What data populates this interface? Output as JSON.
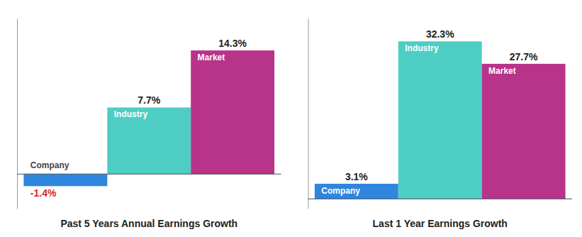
{
  "chart_data": [
    {
      "type": "bar",
      "title": "Past 5 Years Annual Earnings Growth",
      "categories": [
        "Company",
        "Industry",
        "Market"
      ],
      "values": [
        -1.4,
        7.7,
        14.3
      ],
      "value_labels": [
        "-1.4%",
        "7.7%",
        "14.3%"
      ],
      "colors": [
        "#2e86de",
        "#4ecdc4",
        "#b8338a"
      ],
      "ylim": [
        -4,
        18
      ],
      "data_labels": true,
      "tick_labels": false
    },
    {
      "type": "bar",
      "title": "Last 1 Year Earnings Growth",
      "categories": [
        "Company",
        "Industry",
        "Market"
      ],
      "values": [
        3.1,
        32.3,
        27.7
      ],
      "value_labels": [
        "3.1%",
        "32.3%",
        "27.7%"
      ],
      "colors": [
        "#2e86de",
        "#4ecdc4",
        "#b8338a"
      ],
      "ylim": [
        -2,
        37
      ],
      "data_labels": true,
      "tick_labels": false
    }
  ]
}
